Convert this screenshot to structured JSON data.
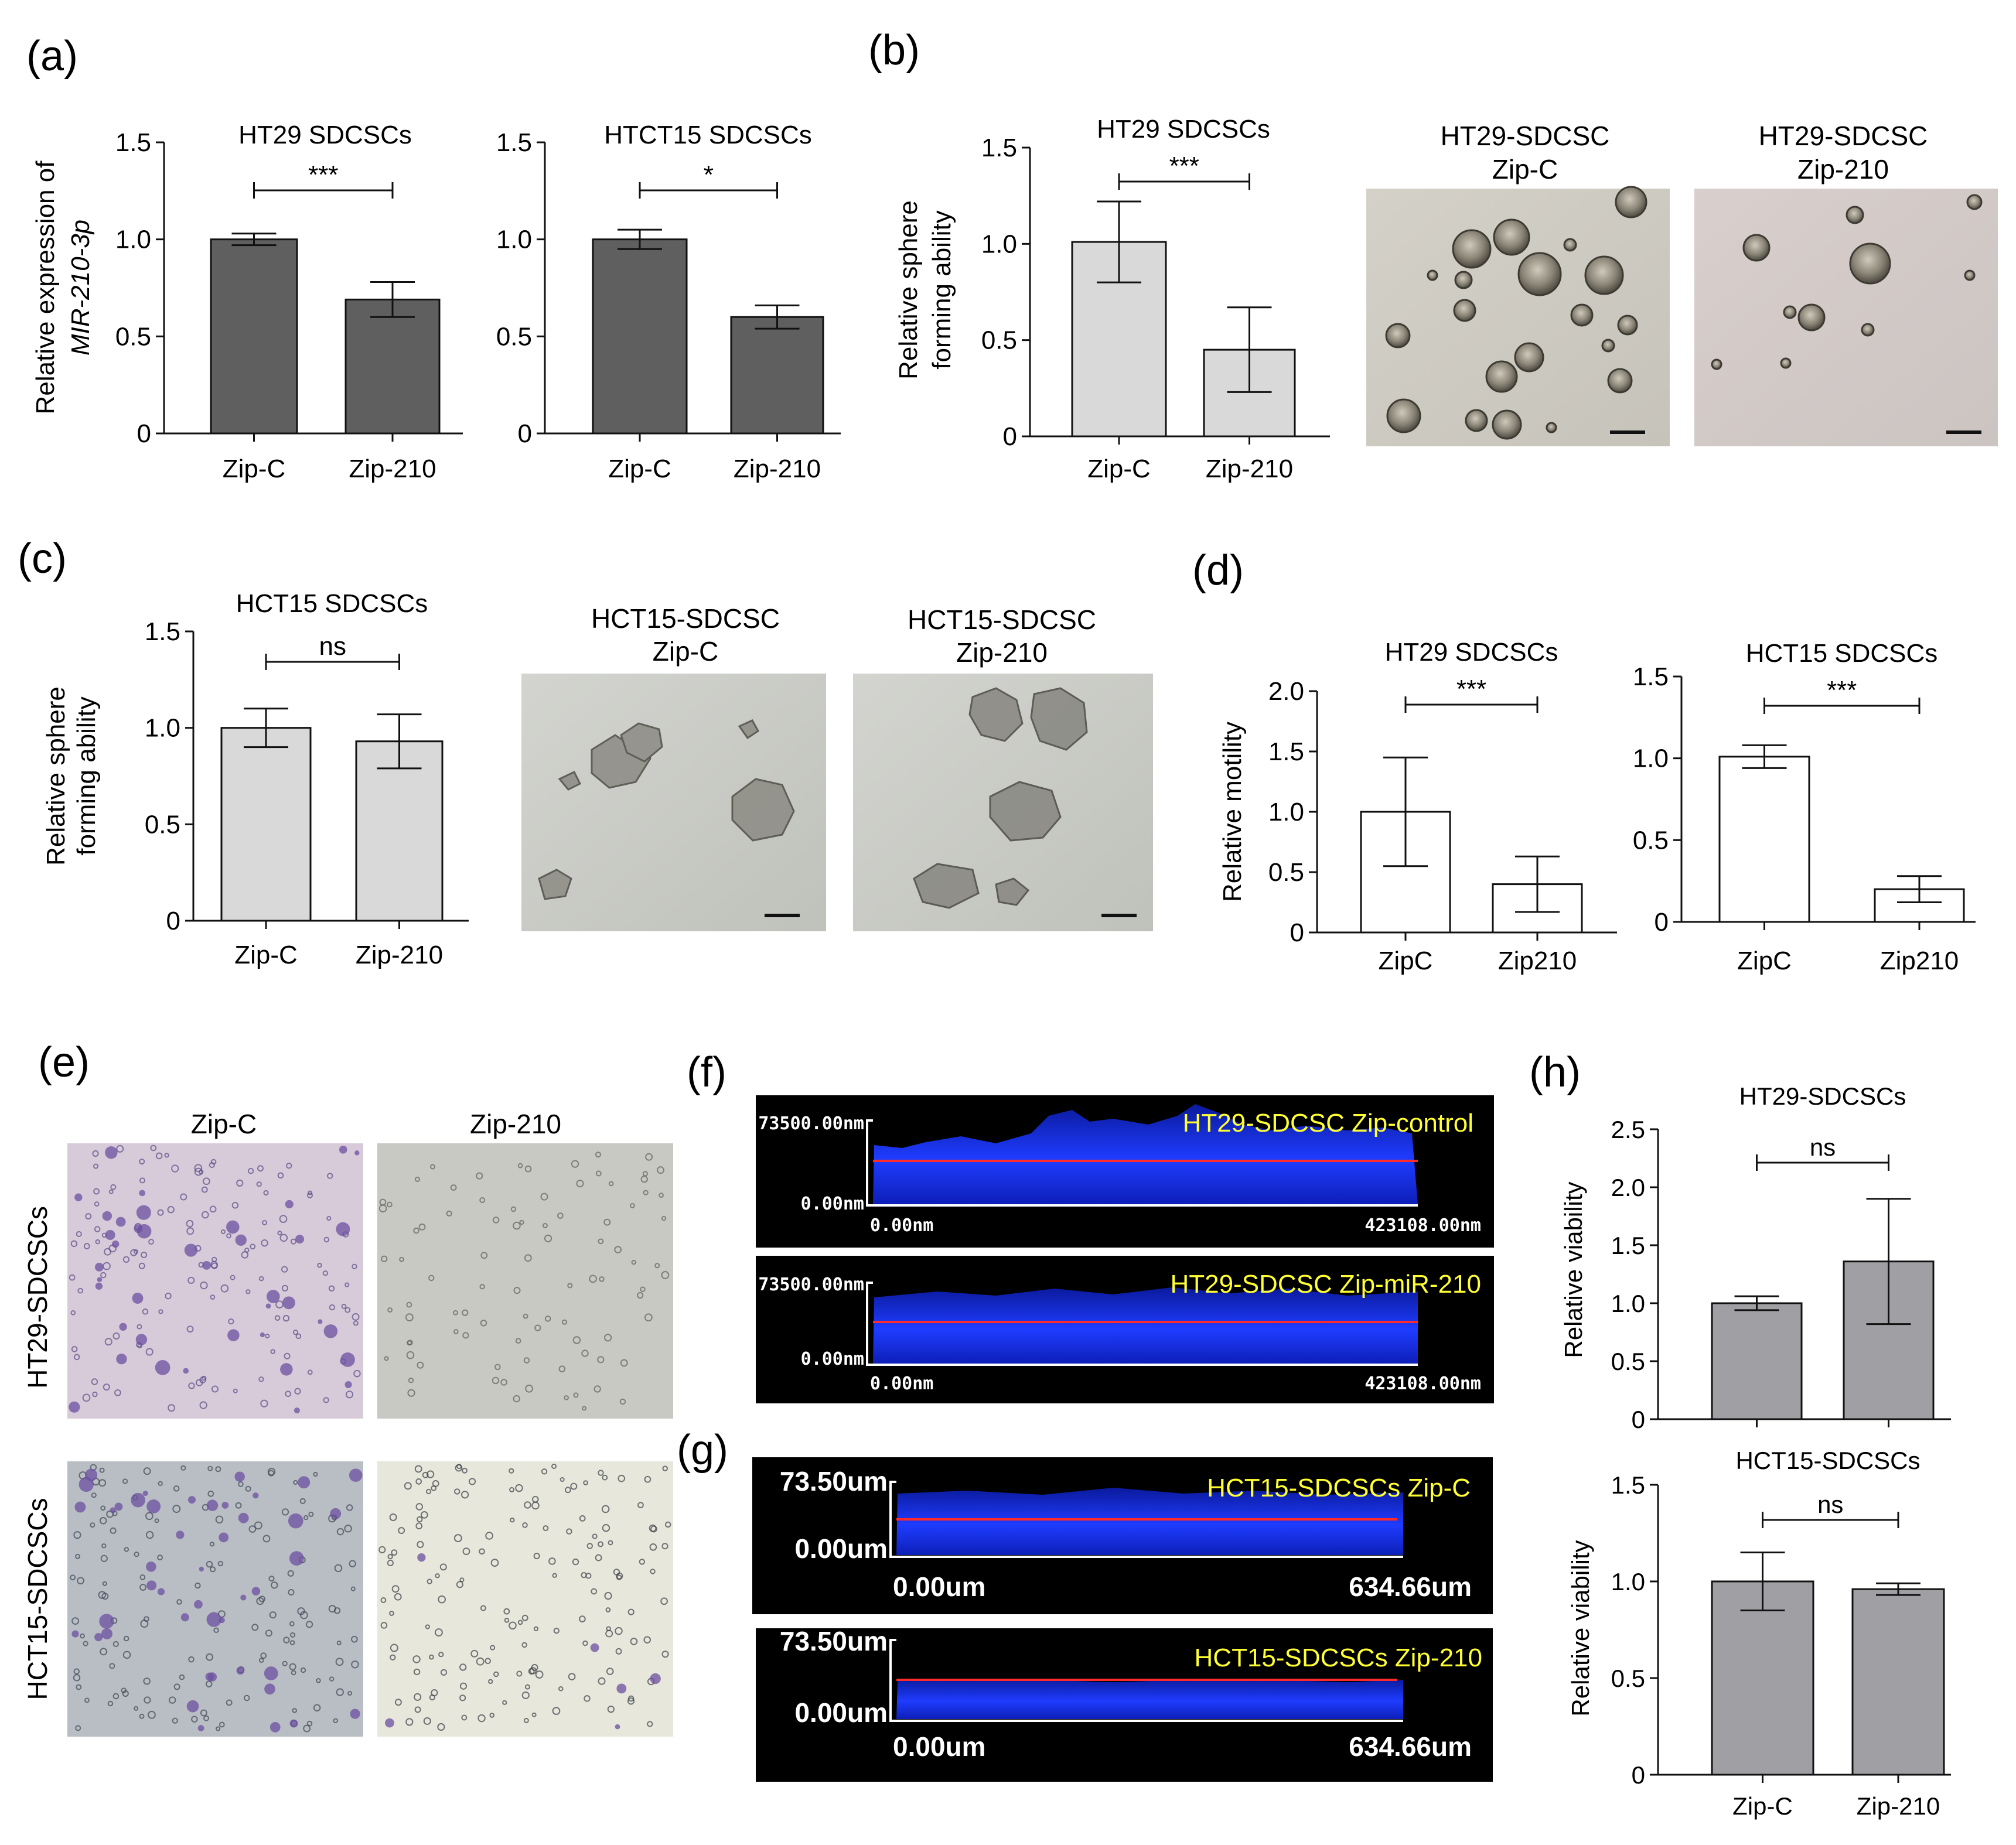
{
  "panel_labels": {
    "a": "(a)",
    "b": "(b)",
    "c": "(c)",
    "d": "(d)",
    "e": "(e)",
    "f": "(f)",
    "g": "(g)",
    "h": "(h)"
  },
  "chart_data": [
    {
      "id": "a1",
      "type": "bar",
      "title": "HT29 SDCSCs",
      "ylabel": "Relative expression of",
      "ylabel2": "MIR-210-3p",
      "categories": [
        "Zip-C",
        "Zip-210"
      ],
      "values": [
        1.0,
        0.69
      ],
      "errors": [
        0.03,
        0.09
      ],
      "ylim": [
        0,
        1.5
      ],
      "yticks": [
        "0",
        "0.5",
        "1.0",
        "1.5"
      ],
      "significance": "***",
      "fill": "#5f5f5f"
    },
    {
      "id": "a2",
      "type": "bar",
      "title": "HTCT15 SDCSCs",
      "ylabel": "",
      "ylabel2": "",
      "categories": [
        "Zip-C",
        "Zip-210"
      ],
      "values": [
        1.0,
        0.6
      ],
      "errors": [
        0.05,
        0.06
      ],
      "ylim": [
        0,
        1.5
      ],
      "yticks": [
        "0",
        "0.5",
        "1.0",
        "1.5"
      ],
      "significance": "*",
      "fill": "#5f5f5f"
    },
    {
      "id": "b",
      "type": "bar",
      "title": "HT29 SDCSCs",
      "ylabel": "Relative sphere",
      "ylabel2": "forming ability",
      "categories": [
        "Zip-C",
        "Zip-210"
      ],
      "values": [
        1.01,
        0.45
      ],
      "errors": [
        0.21,
        0.22
      ],
      "ylim": [
        0,
        1.5
      ],
      "yticks": [
        "0",
        "0.5",
        "1.0",
        "1.5"
      ],
      "significance": "***",
      "fill": "#d9d9d9"
    },
    {
      "id": "c",
      "type": "bar",
      "title": "HCT15 SDCSCs",
      "ylabel": "Relative sphere",
      "ylabel2": "forming ability",
      "categories": [
        "Zip-C",
        "Zip-210"
      ],
      "values": [
        1.0,
        0.93
      ],
      "errors": [
        0.1,
        0.14
      ],
      "ylim": [
        0,
        1.5
      ],
      "yticks": [
        "0",
        "0.5",
        "1.0",
        "1.5"
      ],
      "significance": "ns",
      "fill": "#d9d9d9"
    },
    {
      "id": "d1",
      "type": "bar",
      "title": "HT29 SDCSCs",
      "ylabel": "Relative motility",
      "ylabel2": "",
      "categories": [
        "ZipC",
        "Zip210"
      ],
      "values": [
        1.0,
        0.4
      ],
      "errors": [
        0.45,
        0.23
      ],
      "ylim": [
        0,
        2.0
      ],
      "yticks": [
        "0",
        "0.5",
        "1.0",
        "1.5",
        "2.0"
      ],
      "significance": "***",
      "fill": "#ffffff"
    },
    {
      "id": "d2",
      "type": "bar",
      "title": "HCT15 SDCSCs",
      "ylabel": "",
      "ylabel2": "",
      "categories": [
        "ZipC",
        "Zip210"
      ],
      "values": [
        1.01,
        0.2
      ],
      "errors": [
        0.07,
        0.08
      ],
      "ylim": [
        0,
        1.5
      ],
      "yticks": [
        "0",
        "0.5",
        "1.0",
        "1.5"
      ],
      "significance": "***",
      "fill": "#ffffff"
    },
    {
      "id": "h1",
      "type": "bar",
      "title": "HT29-SDCSCs",
      "ylabel": "Relative viability",
      "ylabel2": "",
      "categories": [
        "",
        ""
      ],
      "values": [
        1.0,
        1.36
      ],
      "errors": [
        0.06,
        0.54
      ],
      "ylim": [
        0,
        2.5
      ],
      "yticks": [
        "0",
        "0.5",
        "1.0",
        "1.5",
        "2.0",
        "2.5"
      ],
      "significance": "ns",
      "fill": "#a0a0a4"
    },
    {
      "id": "h2",
      "type": "bar",
      "title": "HCT15-SDCSCs",
      "ylabel": "Relative viability",
      "ylabel2": "",
      "categories": [
        "Zip-C",
        "Zip-210"
      ],
      "values": [
        1.0,
        0.96
      ],
      "errors": [
        0.15,
        0.03
      ],
      "ylim": [
        0,
        1.5
      ],
      "yticks": [
        "0",
        "0.5",
        "1.0",
        "1.5"
      ],
      "significance": "ns",
      "fill": "#a0a0a4"
    }
  ],
  "micrographs": {
    "b": {
      "left_title1": "HT29-SDCSC",
      "left_title2": "Zip-C",
      "right_title1": "HT29-SDCSC",
      "right_title2": "Zip-210"
    },
    "c": {
      "left_title1": "HCT15-SDCSC",
      "left_title2": "Zip-C",
      "right_title1": "HCT15-SDCSC",
      "right_title2": "Zip-210"
    },
    "e": {
      "col1": "Zip-C",
      "col2": "Zip-210",
      "row1": "HT29-SDCSCs",
      "row2": "HCT15-SDCSCs"
    }
  },
  "confocal": {
    "f": [
      {
        "ytop": "73500.00nm",
        "ybottom": "0.00nm",
        "xleft": "0.00nm",
        "xright": "423108.00nm",
        "label": "HT29-SDCSC Zip-control"
      },
      {
        "ytop": "73500.00nm",
        "ybottom": "0.00nm",
        "xleft": "0.00nm",
        "xright": "423108.00nm",
        "label": "HT29-SDCSC Zip-miR-210"
      }
    ],
    "g": [
      {
        "ytop": "73.50um",
        "ybottom": "0.00um",
        "xleft": "0.00um",
        "xright": "634.66um",
        "label": "HCT15-SDCSCs Zip-C"
      },
      {
        "ytop": "73.50um",
        "ybottom": "0.00um",
        "xleft": "0.00um",
        "xright": "634.66um",
        "label": "HCT15-SDCSCs Zip-210"
      }
    ]
  },
  "colors": {
    "confocal_label": "#ffff33",
    "confocal_line": "#ff2a2a",
    "confocal_band": "#1f3cff",
    "stain_purple": "#6c4fa0"
  }
}
